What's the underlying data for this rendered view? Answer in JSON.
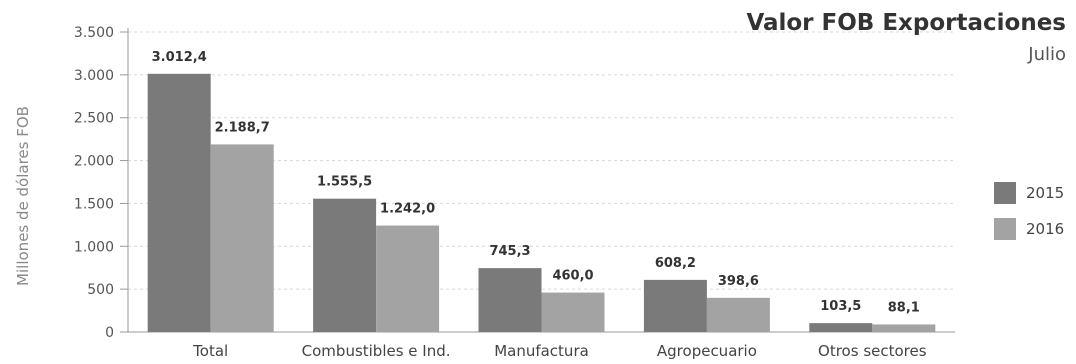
{
  "chart_data": {
    "type": "bar",
    "title": "Valor FOB Exportaciones",
    "subtitle": "Julio",
    "ylabel": "Millones de dólares FOB",
    "xlabel": "",
    "ylim": [
      0,
      3500
    ],
    "yticks": [
      0,
      500,
      1000,
      1500,
      2000,
      2500,
      3000,
      3500
    ],
    "ytick_labels": [
      "0",
      "500",
      "1.000",
      "1.500",
      "2.000",
      "2.500",
      "3.000",
      "3.500"
    ],
    "categories": [
      "Total",
      "Combustibles e Ind.",
      "Manufactura",
      "Agropecuario",
      "Otros sectores"
    ],
    "series": [
      {
        "name": "2015",
        "color": "#7a7a7a",
        "values": [
          3012.4,
          1555.5,
          745.3,
          608.2,
          103.5
        ],
        "labels": [
          "3.012,4",
          "1.555,5",
          "745,3",
          "608,2",
          "103,5"
        ]
      },
      {
        "name": "2016",
        "color": "#a3a3a3",
        "values": [
          2188.7,
          1242.0,
          460.0,
          398.6,
          88.1
        ],
        "labels": [
          "2.188,7",
          "1.242,0",
          "460,0",
          "398,6",
          "88,1"
        ]
      }
    ],
    "grid": true,
    "legend_position": "right"
  }
}
